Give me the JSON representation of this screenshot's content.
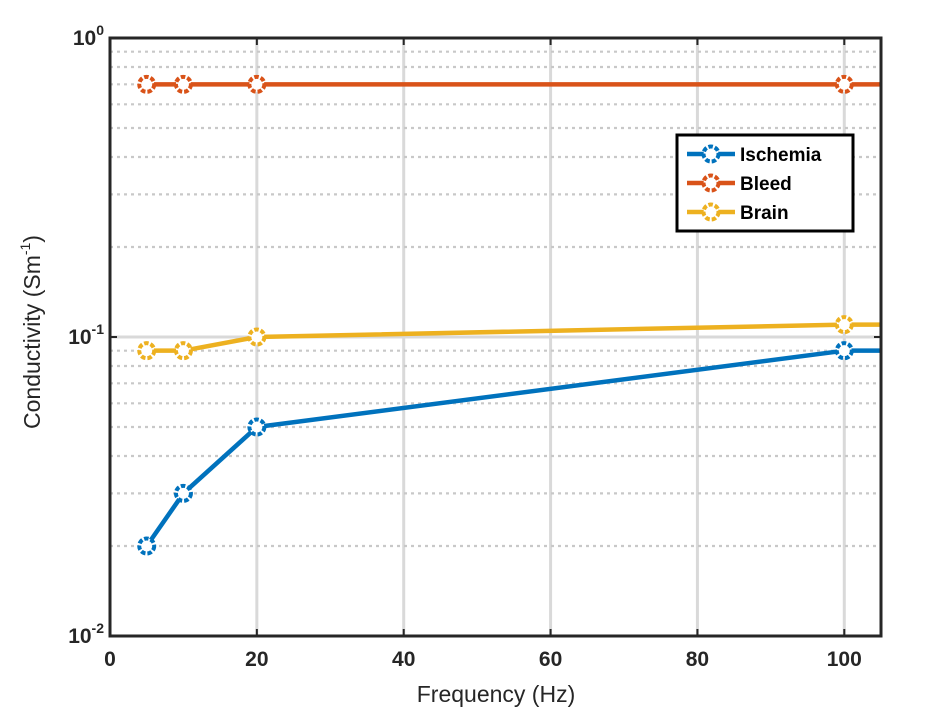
{
  "chart_data": {
    "type": "line",
    "xlabel": "Frequency (Hz)",
    "ylabel": {
      "main": "Conductivity (Sm",
      "sup": "-1",
      "end": ")"
    },
    "x_scale": "linear",
    "y_scale": "log",
    "xlim": [
      0,
      105
    ],
    "ylim": [
      0.01,
      1
    ],
    "x_ticks": [
      0,
      20,
      40,
      60,
      80,
      100
    ],
    "x_tick_labels": [
      "0",
      "20",
      "40",
      "60",
      "80",
      "100"
    ],
    "y_ticks": [
      0.01,
      0.1,
      1
    ],
    "y_tick_labels": [
      {
        "base": "10",
        "exp": "-2"
      },
      {
        "base": "10",
        "exp": "-1"
      },
      {
        "base": "10",
        "exp": "0"
      }
    ],
    "grid": true,
    "minor_grid_y": true,
    "legend_position": "top-right",
    "series": [
      {
        "name": "Ischemia",
        "color": "#0072BD",
        "x": [
          5,
          10,
          20,
          100
        ],
        "y": [
          0.02,
          0.03,
          0.05,
          0.09
        ],
        "extend_to_xmax": 0.09
      },
      {
        "name": "Bleed",
        "color": "#D95319",
        "x": [
          5,
          10,
          20,
          100
        ],
        "y": [
          0.7,
          0.7,
          0.7,
          0.7
        ],
        "extend_to_xmax": 0.7
      },
      {
        "name": "Brain",
        "color": "#EDB120",
        "x": [
          5,
          10,
          20,
          100
        ],
        "y": [
          0.09,
          0.09,
          0.1,
          0.11
        ],
        "extend_to_xmax": 0.11
      }
    ]
  }
}
